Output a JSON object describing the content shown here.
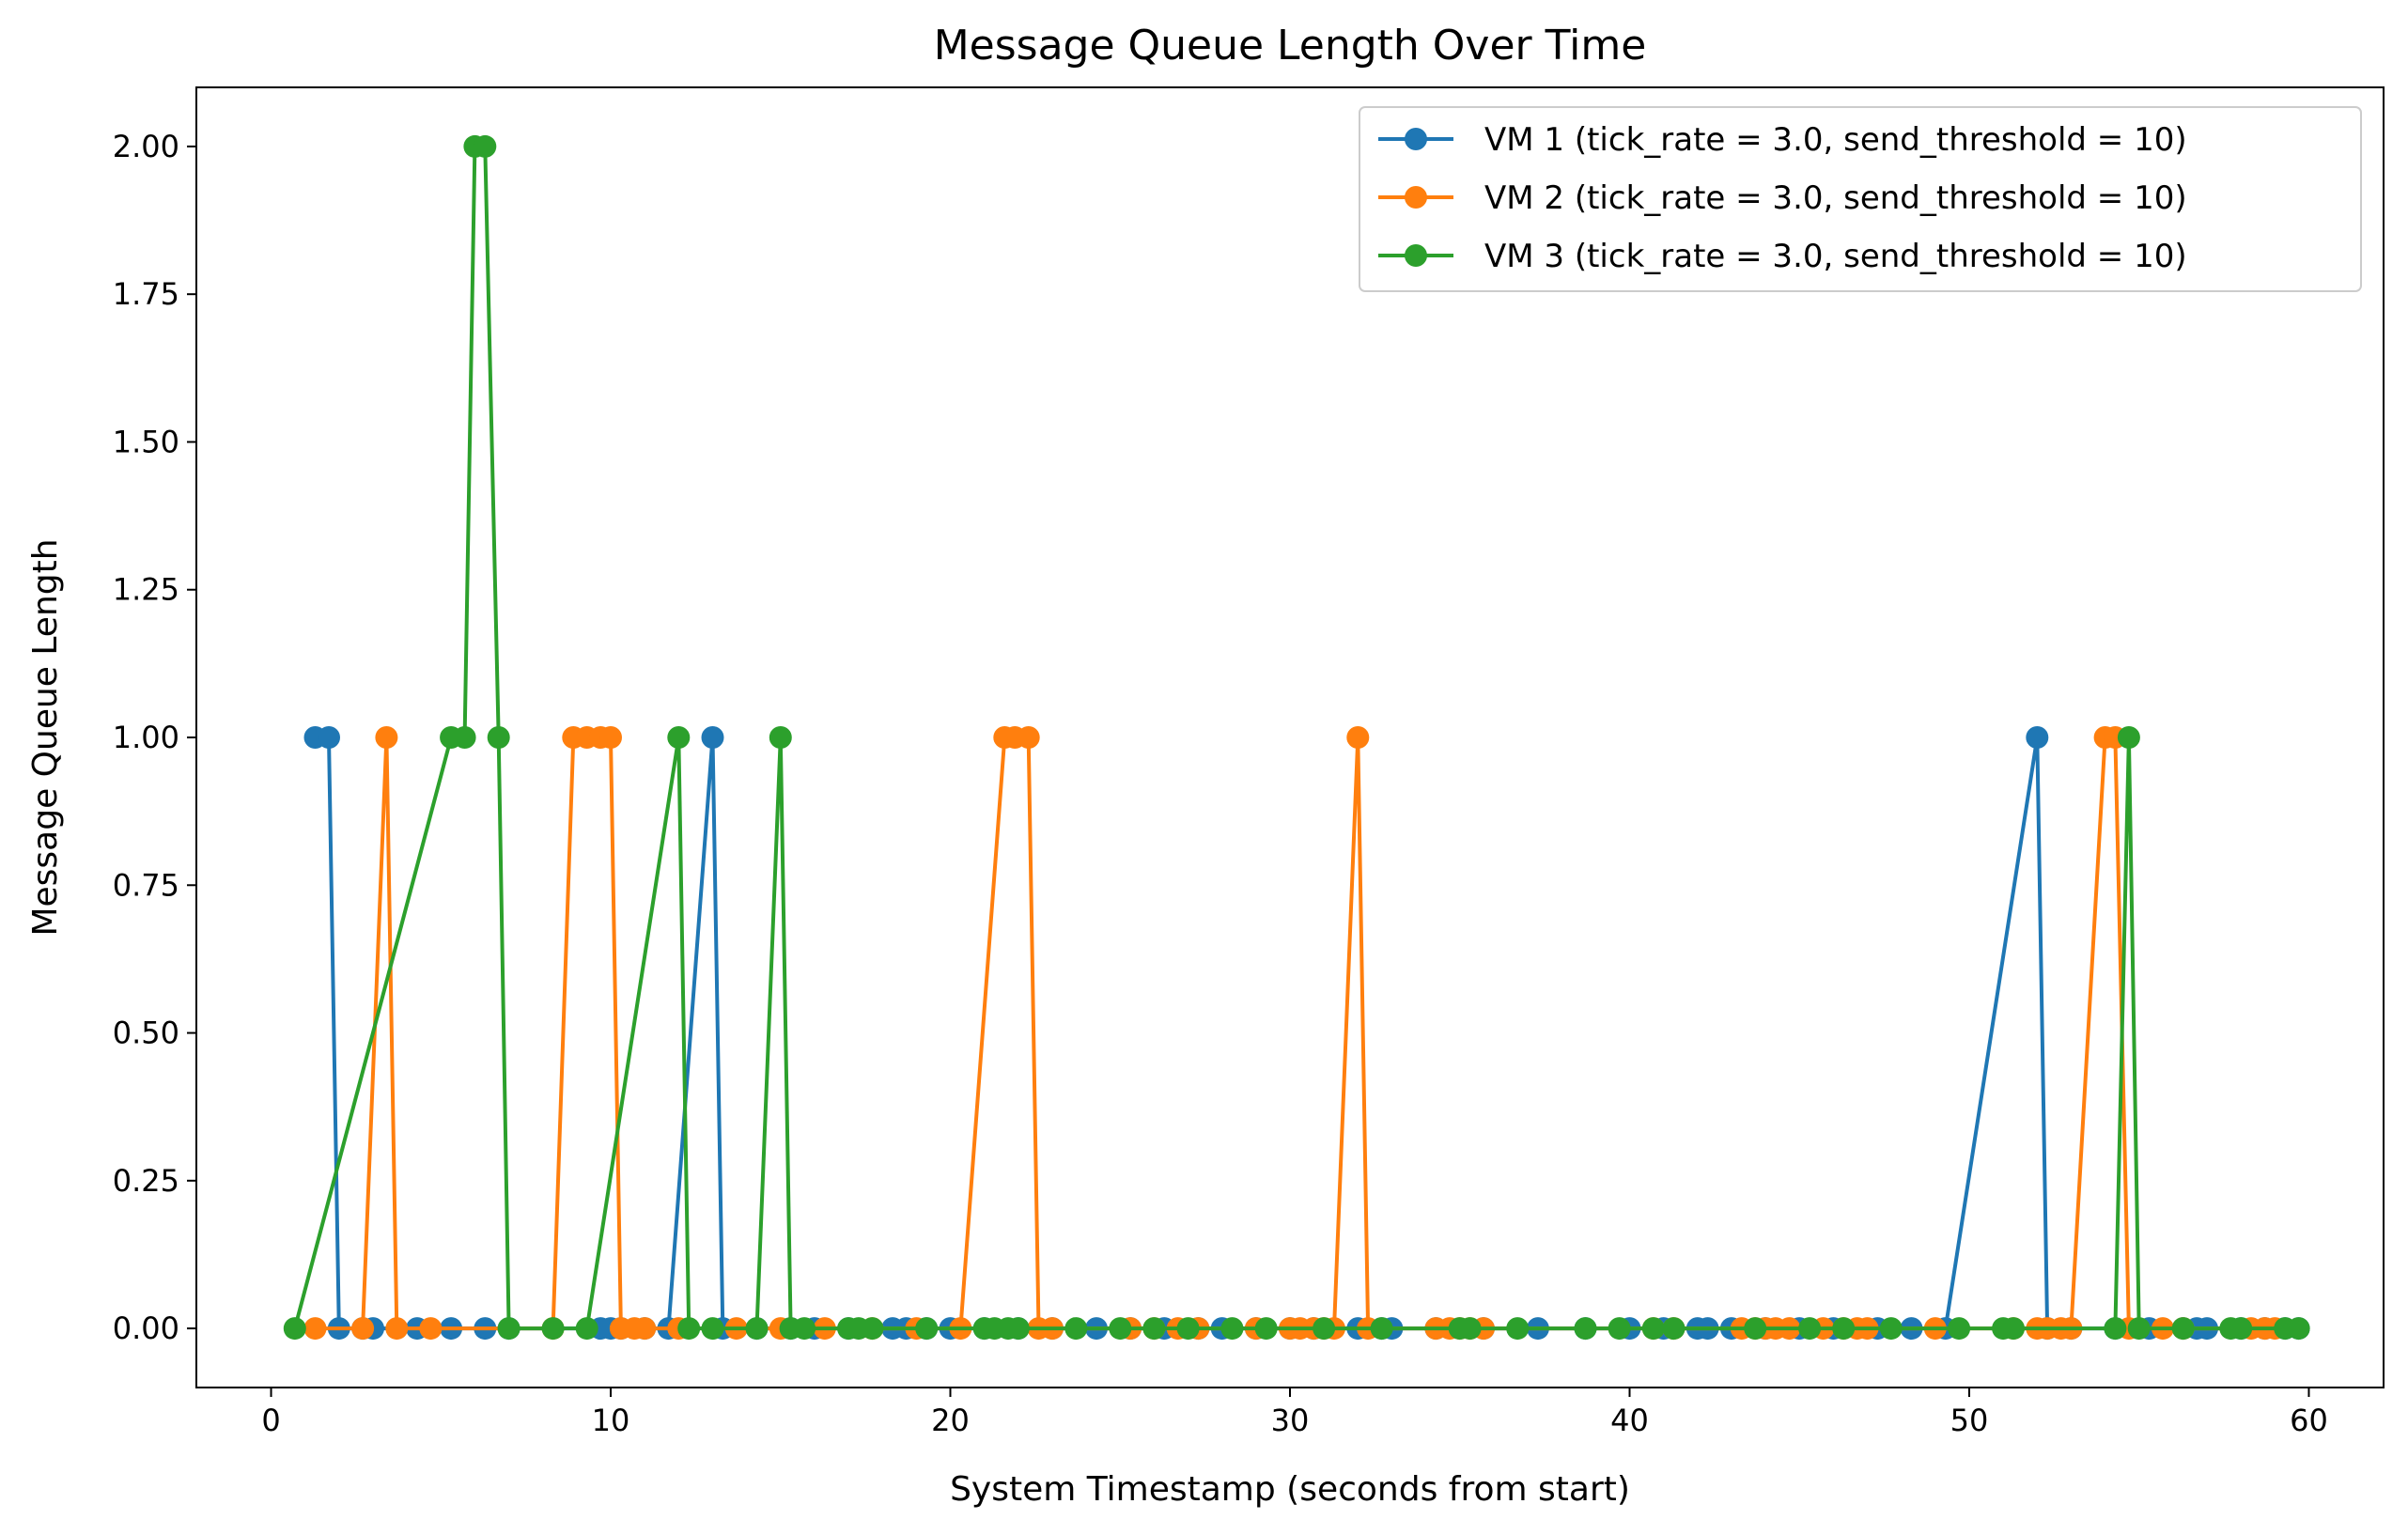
{
  "chart_data": {
    "type": "line",
    "title": "Message Queue Length Over Time",
    "xlabel": "System Timestamp (seconds from start)",
    "ylabel": "Message Queue Length",
    "xlim": [
      -2.2,
      62.2
    ],
    "ylim": [
      -0.1,
      2.1
    ],
    "xticks": [
      0,
      10,
      20,
      30,
      40,
      50,
      60
    ],
    "xtick_labels": [
      "0",
      "10",
      "20",
      "30",
      "40",
      "50",
      "60"
    ],
    "yticks": [
      0,
      0.25,
      0.5,
      0.75,
      1.0,
      1.25,
      1.5,
      1.75,
      2.0
    ],
    "ytick_labels": [
      "0.00",
      "0.25",
      "0.50",
      "0.75",
      "1.00",
      "1.25",
      "1.50",
      "1.75",
      "2.00"
    ],
    "grid": false,
    "legend_position": "top-right",
    "marker": "circle",
    "series": [
      {
        "name": "VM 1 (tick_rate = 3.0, send_threshold = 10)",
        "color": "#1f77b4",
        "points": [
          [
            1.3,
            1
          ],
          [
            1.7,
            1
          ],
          [
            2.0,
            0
          ],
          [
            2.7,
            0
          ],
          [
            3.0,
            0
          ],
          [
            4.3,
            0
          ],
          [
            5.3,
            0
          ],
          [
            6.3,
            0
          ],
          [
            7.0,
            0
          ],
          [
            9.7,
            0
          ],
          [
            10.0,
            0
          ],
          [
            10.3,
            0
          ],
          [
            11.0,
            0
          ],
          [
            11.7,
            0
          ],
          [
            13.0,
            1
          ],
          [
            13.3,
            0
          ],
          [
            14.3,
            0
          ],
          [
            15.3,
            0
          ],
          [
            16.0,
            0
          ],
          [
            17.0,
            0
          ],
          [
            18.3,
            0
          ],
          [
            18.7,
            0
          ],
          [
            19.3,
            0
          ],
          [
            20.0,
            0
          ],
          [
            21.0,
            0
          ],
          [
            22.0,
            0
          ],
          [
            23.0,
            0
          ],
          [
            24.3,
            0
          ],
          [
            25.3,
            0
          ],
          [
            26.3,
            0
          ],
          [
            27.3,
            0
          ],
          [
            28.0,
            0
          ],
          [
            29.0,
            0
          ],
          [
            30.0,
            0
          ],
          [
            30.7,
            0
          ],
          [
            32.0,
            0
          ],
          [
            32.7,
            0
          ],
          [
            33.0,
            0
          ],
          [
            34.3,
            0
          ],
          [
            35.7,
            0
          ],
          [
            37.3,
            0
          ],
          [
            38.7,
            0
          ],
          [
            40.0,
            0
          ],
          [
            41.0,
            0
          ],
          [
            42.0,
            0
          ],
          [
            42.3,
            0
          ],
          [
            43.0,
            0
          ],
          [
            44.0,
            0
          ],
          [
            45.0,
            0
          ],
          [
            46.0,
            0
          ],
          [
            47.3,
            0
          ],
          [
            48.3,
            0
          ],
          [
            49.3,
            0
          ],
          [
            52.0,
            1
          ],
          [
            52.3,
            0
          ],
          [
            53.0,
            0
          ],
          [
            54.3,
            0
          ],
          [
            55.3,
            0
          ],
          [
            56.3,
            0
          ],
          [
            56.7,
            0
          ],
          [
            57.0,
            0
          ],
          [
            58.0,
            0
          ],
          [
            58.7,
            0
          ],
          [
            59.3,
            0
          ],
          [
            59.7,
            0
          ]
        ]
      },
      {
        "name": "VM 2 (tick_rate = 3.0, send_threshold = 10)",
        "color": "#ff7f0e",
        "points": [
          [
            1.3,
            0
          ],
          [
            2.7,
            0
          ],
          [
            3.4,
            1
          ],
          [
            3.7,
            0
          ],
          [
            4.7,
            0
          ],
          [
            8.3,
            0
          ],
          [
            8.9,
            1
          ],
          [
            9.3,
            1
          ],
          [
            9.7,
            1
          ],
          [
            10.0,
            1
          ],
          [
            10.3,
            0
          ],
          [
            10.7,
            0
          ],
          [
            11.0,
            0
          ],
          [
            12.0,
            0
          ],
          [
            13.7,
            0
          ],
          [
            15.0,
            0
          ],
          [
            16.3,
            0
          ],
          [
            17.7,
            0
          ],
          [
            19.0,
            0
          ],
          [
            20.3,
            0
          ],
          [
            21.6,
            1
          ],
          [
            21.9,
            1
          ],
          [
            22.3,
            1
          ],
          [
            22.6,
            0
          ],
          [
            23.0,
            0
          ],
          [
            25.3,
            0
          ],
          [
            26.0,
            0
          ],
          [
            26.7,
            0
          ],
          [
            27.3,
            0
          ],
          [
            29.0,
            0
          ],
          [
            30.0,
            0
          ],
          [
            30.3,
            0
          ],
          [
            30.7,
            0
          ],
          [
            31.0,
            0
          ],
          [
            31.3,
            0
          ],
          [
            32.0,
            1
          ],
          [
            32.3,
            0
          ],
          [
            34.3,
            0
          ],
          [
            34.7,
            0
          ],
          [
            35.0,
            0
          ],
          [
            35.3,
            0
          ],
          [
            35.7,
            0
          ],
          [
            40.7,
            0
          ],
          [
            41.3,
            0
          ],
          [
            43.3,
            0
          ],
          [
            43.7,
            0
          ],
          [
            44.0,
            0
          ],
          [
            44.3,
            0
          ],
          [
            44.7,
            0
          ],
          [
            45.7,
            0
          ],
          [
            46.3,
            0
          ],
          [
            46.7,
            0
          ],
          [
            47.0,
            0
          ],
          [
            49.0,
            0
          ],
          [
            51.3,
            0
          ],
          [
            52.0,
            0
          ],
          [
            52.3,
            0
          ],
          [
            52.7,
            0
          ],
          [
            53.0,
            0
          ],
          [
            54.0,
            1
          ],
          [
            54.3,
            1
          ],
          [
            54.7,
            0
          ],
          [
            55.7,
            0
          ],
          [
            56.3,
            0
          ],
          [
            58.3,
            0
          ],
          [
            58.7,
            0
          ],
          [
            59.0,
            0
          ]
        ]
      },
      {
        "name": "VM 3 (tick_rate = 3.0, send_threshold = 10)",
        "color": "#2ca02c",
        "points": [
          [
            0.7,
            0
          ],
          [
            5.3,
            1
          ],
          [
            5.7,
            1
          ],
          [
            6.0,
            2
          ],
          [
            6.3,
            2
          ],
          [
            6.7,
            1
          ],
          [
            7.0,
            0
          ],
          [
            8.3,
            0
          ],
          [
            9.3,
            0
          ],
          [
            12.0,
            1
          ],
          [
            12.3,
            0
          ],
          [
            13.0,
            0
          ],
          [
            14.3,
            0
          ],
          [
            15.0,
            1
          ],
          [
            15.3,
            0
          ],
          [
            15.7,
            0
          ],
          [
            17.0,
            0
          ],
          [
            17.3,
            0
          ],
          [
            17.7,
            0
          ],
          [
            19.3,
            0
          ],
          [
            21.0,
            0
          ],
          [
            21.3,
            0
          ],
          [
            21.7,
            0
          ],
          [
            22.0,
            0
          ],
          [
            23.7,
            0
          ],
          [
            25.0,
            0
          ],
          [
            26.0,
            0
          ],
          [
            27.0,
            0
          ],
          [
            28.3,
            0
          ],
          [
            29.3,
            0
          ],
          [
            31.0,
            0
          ],
          [
            32.7,
            0
          ],
          [
            35.0,
            0
          ],
          [
            35.3,
            0
          ],
          [
            36.7,
            0
          ],
          [
            38.7,
            0
          ],
          [
            39.7,
            0
          ],
          [
            40.7,
            0
          ],
          [
            41.3,
            0
          ],
          [
            43.7,
            0
          ],
          [
            45.3,
            0
          ],
          [
            46.3,
            0
          ],
          [
            47.7,
            0
          ],
          [
            49.7,
            0
          ],
          [
            51.0,
            0
          ],
          [
            51.3,
            0
          ],
          [
            54.3,
            0
          ],
          [
            54.7,
            1
          ],
          [
            55.0,
            0
          ],
          [
            56.3,
            0
          ],
          [
            57.7,
            0
          ],
          [
            58.0,
            0
          ],
          [
            59.3,
            0
          ],
          [
            59.7,
            0
          ]
        ]
      }
    ]
  }
}
